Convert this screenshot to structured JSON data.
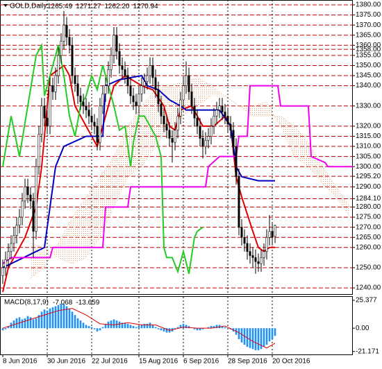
{
  "chart_data": [
    {
      "type": "candlestick",
      "title": "GOLD,Daily",
      "title_values": [
        "1265.49",
        "1271.27",
        "1262.20",
        "1270.94"
      ],
      "ohlc": [
        [
          1246,
          1254,
          1242,
          1250
        ],
        [
          1250,
          1258,
          1246,
          1254
        ],
        [
          1254,
          1262,
          1250,
          1258
        ],
        [
          1258,
          1266,
          1254,
          1262
        ],
        [
          1262,
          1270,
          1258,
          1266
        ],
        [
          1266,
          1275,
          1262,
          1271
        ],
        [
          1271,
          1279,
          1267,
          1275
        ],
        [
          1275,
          1287,
          1271,
          1283
        ],
        [
          1283,
          1294,
          1279,
          1290
        ],
        [
          1290,
          1294,
          1282,
          1286
        ],
        [
          1286,
          1290,
          1279,
          1283
        ],
        [
          1283,
          1287,
          1255,
          1268
        ],
        [
          1268,
          1304,
          1264,
          1300
        ],
        [
          1300,
          1320,
          1296,
          1316
        ],
        [
          1316,
          1334,
          1312,
          1330
        ],
        [
          1330,
          1334,
          1320,
          1324
        ],
        [
          1324,
          1328,
          1316,
          1320
        ],
        [
          1320,
          1344,
          1316,
          1340
        ],
        [
          1340,
          1344,
          1333,
          1337
        ],
        [
          1337,
          1349,
          1333,
          1345
        ],
        [
          1345,
          1359,
          1341,
          1355
        ],
        [
          1355,
          1366,
          1351,
          1362
        ],
        [
          1362,
          1377,
          1358,
          1370
        ],
        [
          1370,
          1374,
          1360,
          1364
        ],
        [
          1364,
          1368,
          1356,
          1360
        ],
        [
          1360,
          1364,
          1341,
          1345
        ],
        [
          1345,
          1349,
          1337,
          1341
        ],
        [
          1341,
          1345,
          1331,
          1335
        ],
        [
          1335,
          1339,
          1328,
          1332
        ],
        [
          1332,
          1336,
          1326,
          1330
        ],
        [
          1330,
          1334,
          1324,
          1328
        ],
        [
          1328,
          1332,
          1321,
          1325
        ],
        [
          1325,
          1329,
          1318,
          1322
        ],
        [
          1322,
          1326,
          1316,
          1320
        ],
        [
          1320,
          1324,
          1308,
          1312
        ],
        [
          1312,
          1334,
          1308,
          1330
        ],
        [
          1330,
          1340,
          1326,
          1336
        ],
        [
          1336,
          1344,
          1332,
          1340
        ],
        [
          1340,
          1352,
          1336,
          1348
        ],
        [
          1348,
          1359,
          1344,
          1355
        ],
        [
          1355,
          1369,
          1351,
          1365
        ],
        [
          1365,
          1369,
          1353,
          1357
        ],
        [
          1357,
          1361,
          1346,
          1350
        ],
        [
          1350,
          1354,
          1344,
          1348
        ],
        [
          1348,
          1352,
          1341,
          1345
        ],
        [
          1345,
          1349,
          1336,
          1340
        ],
        [
          1340,
          1344,
          1331,
          1335
        ],
        [
          1335,
          1339,
          1328,
          1332
        ],
        [
          1332,
          1336,
          1326,
          1330
        ],
        [
          1330,
          1340,
          1326,
          1336
        ],
        [
          1336,
          1344,
          1332,
          1340
        ],
        [
          1340,
          1346,
          1336,
          1342
        ],
        [
          1342,
          1349,
          1338,
          1345
        ],
        [
          1345,
          1354,
          1341,
          1350
        ],
        [
          1350,
          1354,
          1340,
          1344
        ],
        [
          1344,
          1348,
          1334,
          1338
        ],
        [
          1338,
          1342,
          1327,
          1331
        ],
        [
          1331,
          1335,
          1321,
          1325
        ],
        [
          1325,
          1329,
          1317,
          1321
        ],
        [
          1321,
          1325,
          1314,
          1318
        ],
        [
          1318,
          1322,
          1310,
          1314
        ],
        [
          1314,
          1318,
          1302,
          1312
        ],
        [
          1312,
          1322,
          1308,
          1318
        ],
        [
          1318,
          1329,
          1314,
          1325
        ],
        [
          1325,
          1337,
          1321,
          1333
        ],
        [
          1333,
          1344,
          1329,
          1340
        ],
        [
          1340,
          1352,
          1336,
          1345
        ],
        [
          1345,
          1349,
          1333,
          1337
        ],
        [
          1337,
          1341,
          1326,
          1330
        ],
        [
          1330,
          1334,
          1320,
          1324
        ],
        [
          1324,
          1328,
          1316,
          1320
        ],
        [
          1320,
          1324,
          1310,
          1314
        ],
        [
          1314,
          1318,
          1304,
          1310
        ],
        [
          1310,
          1317,
          1306,
          1313
        ],
        [
          1313,
          1319,
          1309,
          1315
        ],
        [
          1315,
          1324,
          1311,
          1320
        ],
        [
          1320,
          1329,
          1316,
          1325
        ],
        [
          1325,
          1332,
          1321,
          1328
        ],
        [
          1328,
          1334,
          1324,
          1330
        ],
        [
          1330,
          1334,
          1323,
          1327
        ],
        [
          1327,
          1331,
          1321,
          1325
        ],
        [
          1325,
          1329,
          1317,
          1321
        ],
        [
          1321,
          1325,
          1314,
          1318
        ],
        [
          1318,
          1322,
          1306,
          1310
        ],
        [
          1310,
          1314,
          1291,
          1295
        ],
        [
          1295,
          1299,
          1266,
          1270
        ],
        [
          1270,
          1274,
          1261,
          1265
        ],
        [
          1265,
          1269,
          1258,
          1262
        ],
        [
          1262,
          1266,
          1254,
          1258
        ],
        [
          1258,
          1262,
          1252,
          1256
        ],
        [
          1256,
          1260,
          1250,
          1255
        ],
        [
          1255,
          1259,
          1247,
          1253
        ],
        [
          1253,
          1257,
          1248,
          1252
        ],
        [
          1252,
          1259,
          1248,
          1255
        ],
        [
          1255,
          1262,
          1251,
          1258
        ],
        [
          1258,
          1269,
          1254,
          1265
        ],
        [
          1265,
          1276,
          1261,
          1268
        ],
        [
          1268,
          1272,
          1261,
          1265
        ],
        [
          1265.49,
          1271.27,
          1262.2,
          1270.94
        ]
      ],
      "lines": [
        {
          "color": "#e00000",
          "x": [
            0,
            2,
            8,
            12,
            14,
            17,
            22,
            24,
            26,
            30,
            34,
            36,
            40,
            44,
            50,
            54,
            58,
            60,
            62,
            64,
            68,
            72,
            76,
            80,
            82,
            84,
            86,
            90,
            92,
            94,
            96,
            98
          ],
          "values": [
            1238,
            1250,
            1265,
            1280,
            1300,
            1345,
            1350,
            1345,
            1330,
            1320,
            1310,
            1320,
            1340,
            1345,
            1340,
            1338,
            1330,
            1320,
            1318,
            1328,
            1330,
            1320,
            1320,
            1325,
            1320,
            1295,
            1285,
            1268,
            1260,
            1258,
            1260,
            1260
          ]
        },
        {
          "color": "#0000c0",
          "x": [
            0,
            15,
            19,
            22,
            30,
            36,
            37,
            42,
            50,
            52,
            56,
            60,
            64,
            66,
            70,
            78,
            82,
            84,
            86,
            92,
            98
          ],
          "values": [
            1250,
            1260,
            1300,
            1310,
            1315,
            1315,
            1340,
            1343,
            1345,
            1340,
            1338,
            1333,
            1330,
            1328,
            1328,
            1328,
            1320,
            1300,
            1295,
            1293,
            1293
          ]
        },
        {
          "color": "#22cc22",
          "x": [
            0,
            3,
            6,
            9,
            12,
            14,
            15,
            17,
            20,
            22,
            24,
            26,
            28,
            30,
            32,
            34,
            36,
            38,
            40,
            42,
            44,
            46,
            47,
            49,
            51,
            53,
            55,
            57,
            58,
            59,
            61,
            63,
            65,
            67,
            69,
            70,
            72
          ],
          "values": [
            1300,
            1325,
            1305,
            1330,
            1355,
            1360,
            1335,
            1345,
            1360,
            1345,
            1325,
            1315,
            1330,
            1335,
            1345,
            1338,
            1350,
            1340,
            1330,
            1318,
            1320,
            1300,
            1312,
            1325,
            1325,
            1320,
            1315,
            1305,
            1260,
            1255,
            1255,
            1248,
            1258,
            1247,
            1265,
            1268,
            1270
          ]
        },
        {
          "color": "#ee00ee",
          "x": [
            0,
            3,
            17,
            18,
            36,
            37,
            45,
            46,
            73,
            74,
            78,
            84,
            85,
            88,
            89,
            99,
            100,
            110,
            111,
            116,
            117,
            126
          ],
          "values": [
            1252,
            1255,
            1255,
            1260,
            1260,
            1280,
            1280,
            1290,
            1290,
            1300,
            1305,
            1305,
            1315,
            1315,
            1340,
            1340,
            1330,
            1330,
            1305,
            1302,
            1300,
            1300
          ]
        }
      ],
      "cloud": {
        "color": "#e8a070",
        "x": [
          10,
          15,
          20,
          25,
          30,
          35,
          40,
          45,
          50,
          55,
          60,
          65,
          70,
          75,
          80,
          85,
          90,
          95,
          100,
          105,
          110,
          115,
          120,
          125
        ],
        "span_a": [
          1245,
          1250,
          1262,
          1275,
          1285,
          1295,
          1305,
          1320,
          1330,
          1338,
          1340,
          1342,
          1344,
          1340,
          1335,
          1330,
          1325,
          1325,
          1325,
          1320,
          1312,
          1300,
          1290,
          1280
        ],
        "span_b": [
          1262,
          1260,
          1255,
          1252,
          1255,
          1265,
          1280,
          1295,
          1300,
          1310,
          1320,
          1325,
          1330,
          1335,
          1335,
          1330,
          1330,
          1332,
          1320,
          1305,
          1300,
          1292,
          1285,
          1275
        ]
      },
      "xlim": [
        -1,
        126
      ],
      "xticks": [
        {
          "value": 0,
          "label": "8 Jun 2016"
        },
        {
          "value": 16,
          "label": "30 Jun 2016"
        },
        {
          "value": 32,
          "label": "22 Jul 2016"
        },
        {
          "value": 49,
          "label": "15 Aug 2016"
        },
        {
          "value": 65,
          "label": "6 Sep 2016"
        },
        {
          "value": 81,
          "label": "28 Sep 2016"
        },
        {
          "value": 97,
          "label": "20 Oct 2016"
        }
      ],
      "ylim": [
        1236.6,
        1382.4
      ],
      "yticks": [
        {
          "value": 1380,
          "label": "1380.00"
        },
        {
          "value": 1375,
          "label": "1375.00"
        },
        {
          "value": 1370,
          "label": "1370.00"
        },
        {
          "value": 1365,
          "label": "1365.00"
        },
        {
          "value": 1360,
          "label": "1360.00"
        },
        {
          "value": 1358,
          "label": "1358.00"
        },
        {
          "value": 1355,
          "label": "1355.00"
        },
        {
          "value": 1350,
          "label": "1350.00"
        },
        {
          "value": 1345,
          "label": "1345.00"
        },
        {
          "value": 1340,
          "label": "1340.00"
        },
        {
          "value": 1330,
          "label": "1330.00"
        },
        {
          "value": 1320,
          "label": "1320.00"
        },
        {
          "value": 1315,
          "label": "1315.00"
        },
        {
          "value": 1310,
          "label": "1310.00"
        },
        {
          "value": 1305,
          "label": "1305.00"
        },
        {
          "value": 1300,
          "label": "1300.00"
        },
        {
          "value": 1295.2,
          "label": "1295.20"
        },
        {
          "value": 1290,
          "label": "1290.00"
        },
        {
          "value": 1284.1,
          "label": "1284.10"
        },
        {
          "value": 1280,
          "label": "1280.00"
        },
        {
          "value": 1275,
          "label": "1275.00"
        },
        {
          "value": 1270,
          "label": "1270.00"
        },
        {
          "value": 1265,
          "label": "1265.00"
        },
        {
          "value": 1260,
          "label": "1260.00"
        },
        {
          "value": 1250,
          "label": "1250.00"
        },
        {
          "value": 1240,
          "label": "1240.00"
        }
      ],
      "grid_color": "#c00000"
    },
    {
      "type": "macd",
      "title": "MACD(8,17,9)",
      "title_values": [
        "-7.068",
        "-13.659"
      ],
      "color": "#1e90ff",
      "values": [
        -2,
        -1,
        2,
        5,
        7,
        9,
        10,
        8,
        9,
        11,
        10,
        8,
        9,
        12,
        15,
        17,
        16,
        18,
        19,
        20,
        21,
        22,
        22,
        20,
        18,
        15,
        12,
        9,
        7,
        5,
        3,
        2,
        1,
        -1,
        -3,
        -2,
        1,
        4,
        6,
        7,
        8,
        7,
        6,
        5,
        5,
        4,
        3,
        2,
        1,
        2,
        3,
        4,
        4,
        5,
        3,
        1,
        -1,
        -2,
        -3,
        -4,
        -4,
        -3,
        -1,
        1,
        3,
        4,
        3,
        2,
        0,
        -1,
        -2,
        -2,
        -1,
        0,
        1,
        2,
        2,
        3,
        3,
        2,
        1,
        0,
        -1,
        -3,
        -6,
        -10,
        -13,
        -15,
        -17,
        -18,
        -19,
        -20,
        -20,
        -19,
        -17,
        -15,
        -12,
        -10,
        -7.068
      ],
      "signal": {
        "color": "#e00000",
        "x": [
          0,
          5,
          10,
          15,
          20,
          25,
          30,
          35,
          40,
          45,
          50,
          55,
          60,
          65,
          70,
          75,
          80,
          85,
          90,
          95,
          98
        ],
        "values": [
          0,
          4,
          8,
          12,
          16,
          18,
          12,
          4,
          3,
          5,
          3,
          3,
          -2,
          1,
          0,
          0,
          2,
          -4,
          -12,
          -18,
          -13.659
        ]
      },
      "xlim": [
        -1,
        126
      ],
      "ylim": [
        -24.5,
        28.5
      ],
      "yticks": [
        25.377,
        {
          "value": 0,
          "label": "0.00"
        },
        -21.171
      ]
    }
  ]
}
